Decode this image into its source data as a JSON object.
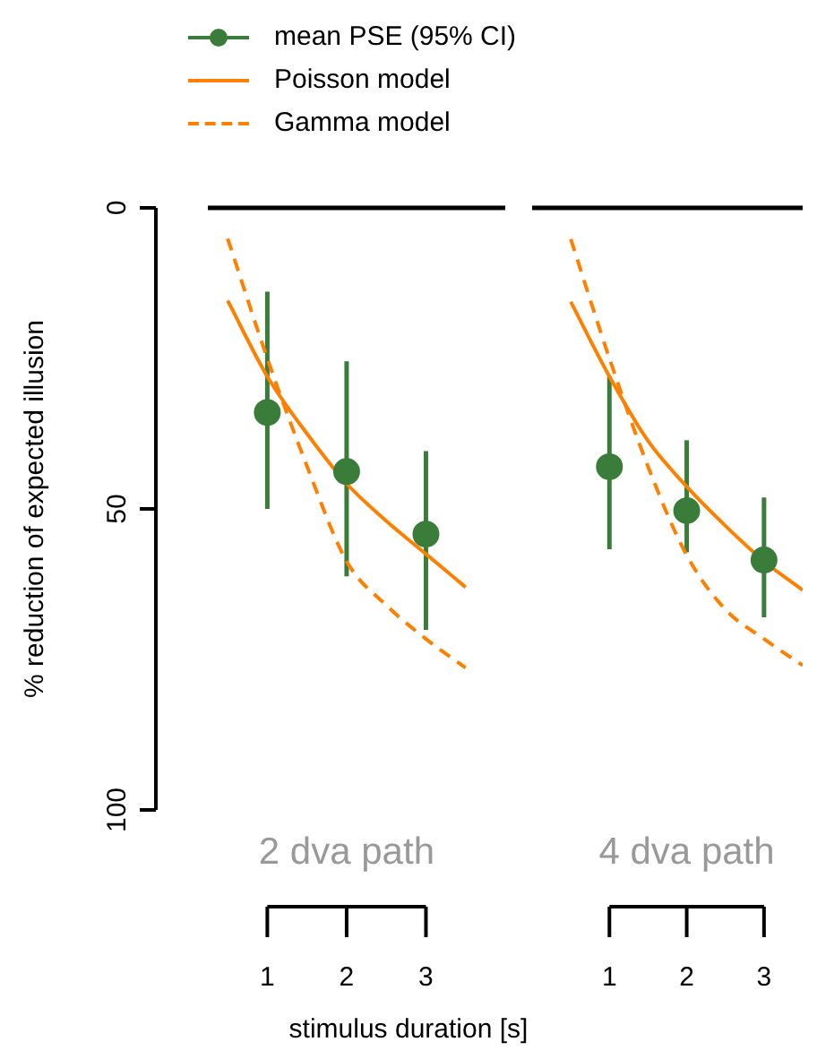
{
  "chart_data": [
    {
      "type": "scatter",
      "title": "2 dva path",
      "xlabel": "stimulus duration [s]",
      "ylabel": "% reduction of expected illusion",
      "xlim": [
        0.25,
        4
      ],
      "xticks": [
        1,
        2,
        3
      ],
      "ylim": [
        100,
        0
      ],
      "yticks": [
        0,
        50,
        100
      ],
      "legend": "top",
      "ref_lines": [
        {
          "axis": "y",
          "value": 0,
          "color": "#000000"
        }
      ],
      "series": [
        {
          "name": "mean PSE (95% CI)",
          "color": "#3a7d3a",
          "marker": "circle",
          "x": [
            1,
            2,
            3
          ],
          "values": [
            34,
            43.8,
            54.2
          ],
          "errors": [
            [
              13.9,
              50
            ],
            [
              25.5,
              61.2
            ],
            [
              40.4,
              70.1
            ]
          ]
        },
        {
          "name": "Poisson model",
          "type": "line",
          "color": "#ff8000",
          "line_style": "solid",
          "marker": "none",
          "x": [
            0.5,
            1,
            1.5,
            2,
            2.5,
            3,
            3.5
          ],
          "values": [
            15.4,
            28,
            37.5,
            45.8,
            52,
            57.5,
            63
          ]
        },
        {
          "name": "Gamma model",
          "type": "line",
          "color": "#ff8000",
          "line_style": "dashed",
          "marker": "none",
          "x": [
            0.5,
            1,
            1.5,
            2,
            2.5,
            3,
            3.5
          ],
          "values": [
            5.1,
            25,
            42.9,
            58.7,
            66,
            71.6,
            76.4
          ]
        }
      ]
    },
    {
      "type": "scatter",
      "title": "4 dva path",
      "xlim": [
        0,
        3.5
      ],
      "xticks": [
        1,
        2,
        3
      ],
      "ylim": [
        100,
        0
      ],
      "tick_labels": "x",
      "ref_lines": [
        {
          "axis": "y",
          "value": 0,
          "color": "#000000"
        }
      ],
      "series": [
        {
          "color": "#3a7d3a",
          "marker": "circle",
          "x": [
            1,
            2,
            3
          ],
          "values": [
            43,
            50.3,
            58.5
          ],
          "errors": [
            [
              28,
              56.7
            ],
            [
              38.6,
              57.2
            ],
            [
              48.1,
              68
            ]
          ]
        },
        {
          "type": "line",
          "color": "#ff8000",
          "line_style": "solid",
          "marker": "none",
          "x": [
            0.5,
            1,
            1.5,
            2,
            2.5,
            3,
            3.5
          ],
          "values": [
            15.6,
            28,
            38.7,
            46.3,
            52.8,
            58.7,
            63.5
          ]
        },
        {
          "type": "line",
          "color": "#ff8000",
          "line_style": "dashed",
          "marker": "none",
          "x": [
            0.5,
            1,
            1.5,
            2,
            2.5,
            3,
            3.5
          ],
          "values": [
            5.2,
            25,
            43,
            57.7,
            66.7,
            71.6,
            76
          ]
        }
      ]
    }
  ]
}
